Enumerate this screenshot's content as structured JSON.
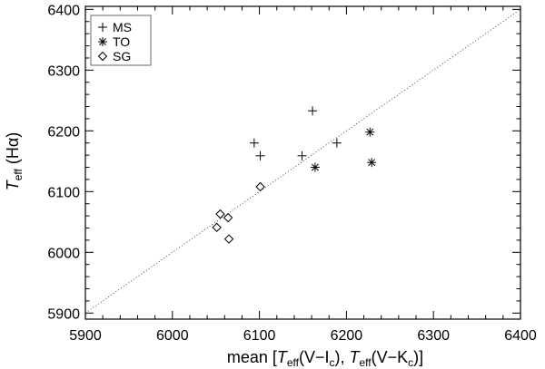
{
  "chart_data": {
    "type": "scatter",
    "title": "",
    "xlabel": {
      "prefix": "mean [",
      "t1": "T",
      "t1_sub": "eff",
      "t1_arg": "(V−I",
      "t1_arg_sub": "c",
      "sep": "), ",
      "t2": "T",
      "t2_sub": "eff",
      "t2_arg": "(V−K",
      "t2_arg_sub": "c",
      "suffix": ")]"
    },
    "ylabel": {
      "t": "T",
      "t_sub": "eff",
      "arg": " (Hα)"
    },
    "xlim": [
      5900,
      6400
    ],
    "ylim": [
      5890,
      6405
    ],
    "xticks": [
      5900,
      6000,
      6100,
      6200,
      6300,
      6400
    ],
    "yticks": [
      5900,
      6000,
      6100,
      6200,
      6300,
      6400
    ],
    "reference_line": {
      "style": "dotted",
      "relation": "y = x"
    },
    "legend_position": "top-left",
    "series": [
      {
        "name": "MS",
        "marker": "plus",
        "points": [
          [
            6094,
            6180
          ],
          [
            6101,
            6159
          ],
          [
            6149,
            6159
          ],
          [
            6161,
            6233
          ],
          [
            6189,
            6180
          ]
        ]
      },
      {
        "name": "TO",
        "marker": "asterisk",
        "points": [
          [
            6164,
            6140
          ],
          [
            6227,
            6198
          ],
          [
            6229,
            6148
          ]
        ]
      },
      {
        "name": "SG",
        "marker": "diamond",
        "points": [
          [
            6055,
            6063
          ],
          [
            6051,
            6041
          ],
          [
            6064,
            6057
          ],
          [
            6065,
            6022
          ],
          [
            6101,
            6108
          ]
        ]
      }
    ]
  }
}
